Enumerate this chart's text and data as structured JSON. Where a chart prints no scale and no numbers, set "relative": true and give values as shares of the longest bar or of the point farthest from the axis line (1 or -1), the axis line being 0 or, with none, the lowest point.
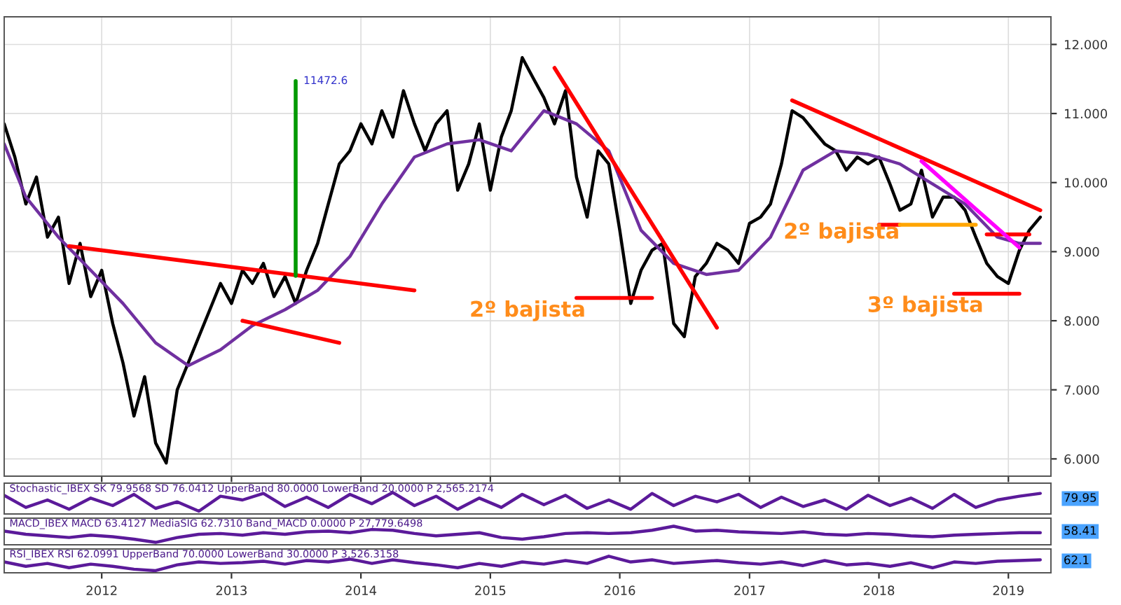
{
  "chart_data": [
    {
      "type": "line",
      "xlim": [
        "2011-04",
        "2019-05"
      ],
      "ylim": [
        5.75,
        12.4
      ],
      "xticks": [
        {
          "value": "2012",
          "label": null
        },
        {
          "value": "2013",
          "label": null
        },
        {
          "value": "2014",
          "label": null
        },
        {
          "value": "2015",
          "label": null
        },
        {
          "value": "2016",
          "label": null
        },
        {
          "value": "2017",
          "label": null
        },
        {
          "value": "2018",
          "label": null
        },
        {
          "value": "2019",
          "label": null
        }
      ],
      "yticks": [
        {
          "value": 6,
          "label": "6.000"
        },
        {
          "value": 7,
          "label": "7.000"
        },
        {
          "value": 8,
          "label": "8.000"
        },
        {
          "value": 9,
          "label": "9.000"
        },
        {
          "value": 10,
          "label": "10.000"
        },
        {
          "value": 11,
          "label": "11.000"
        },
        {
          "value": 12,
          "label": "12.000"
        }
      ],
      "tick_labels": "y",
      "grid": true,
      "legend": false,
      "series": [
        {
          "color": "#000000",
          "x": [
            "2011-04",
            "2011-05",
            "2011-06",
            "2011-07",
            "2011-08",
            "2011-09",
            "2011-10",
            "2011-11",
            "2011-12",
            "2012-01",
            "2012-02",
            "2012-03",
            "2012-04",
            "2012-05",
            "2012-06",
            "2012-07",
            "2012-08",
            "2012-09",
            "2012-10",
            "2012-11",
            "2012-12",
            "2013-01",
            "2013-02",
            "2013-03",
            "2013-04",
            "2013-05",
            "2013-06",
            "2013-07",
            "2013-08",
            "2013-09",
            "2013-10",
            "2013-11",
            "2013-12",
            "2014-01",
            "2014-02",
            "2014-03",
            "2014-04",
            "2014-05",
            "2014-06",
            "2014-07",
            "2014-08",
            "2014-09",
            "2014-10",
            "2014-11",
            "2014-12",
            "2015-01",
            "2015-02",
            "2015-03",
            "2015-04",
            "2015-05",
            "2015-06",
            "2015-07",
            "2015-08",
            "2015-09",
            "2015-10",
            "2015-11",
            "2015-12",
            "2016-01",
            "2016-02",
            "2016-03",
            "2016-04",
            "2016-05",
            "2016-06",
            "2016-07",
            "2016-08",
            "2016-09",
            "2016-10",
            "2016-11",
            "2016-12",
            "2017-01",
            "2017-02",
            "2017-03",
            "2017-04",
            "2017-05",
            "2017-06",
            "2017-07",
            "2017-08",
            "2017-09",
            "2017-10",
            "2017-11",
            "2017-12",
            "2018-01",
            "2018-02",
            "2018-03",
            "2018-04",
            "2018-05",
            "2018-06",
            "2018-07",
            "2018-08",
            "2018-09",
            "2018-10",
            "2018-11",
            "2018-12",
            "2019-01",
            "2019-02",
            "2019-03",
            "2019-04"
          ],
          "values": [
            10.85,
            10.37,
            9.69,
            10.08,
            9.21,
            9.5,
            8.54,
            9.12,
            8.35,
            8.73,
            7.96,
            7.39,
            6.62,
            7.19,
            6.23,
            5.94,
            7.0,
            7.39,
            7.77,
            8.16,
            8.54,
            8.25,
            8.73,
            8.54,
            8.83,
            8.35,
            8.64,
            8.25,
            8.73,
            9.12,
            9.69,
            10.27,
            10.46,
            10.85,
            10.56,
            11.04,
            10.66,
            11.33,
            10.85,
            10.46,
            10.85,
            11.04,
            9.89,
            10.27,
            10.85,
            9.89,
            10.66,
            11.04,
            11.81,
            11.52,
            11.23,
            10.85,
            11.33,
            10.08,
            9.5,
            10.46,
            10.27,
            9.31,
            8.25,
            8.73,
            9.02,
            9.12,
            7.96,
            7.77,
            8.64,
            8.83,
            9.12,
            9.02,
            8.83,
            9.41,
            9.5,
            9.69,
            10.27,
            11.04,
            10.94,
            10.75,
            10.56,
            10.46,
            10.18,
            10.37,
            10.27,
            10.37,
            9.98,
            9.6,
            9.69,
            10.18,
            9.5,
            9.79,
            9.79,
            9.6,
            9.21,
            8.83,
            8.64,
            8.54,
            9.02,
            9.31,
            9.5
          ]
        },
        {
          "color": "#7030a0",
          "x": [
            "2011-04",
            "2011-06",
            "2011-09",
            "2011-12",
            "2012-03",
            "2012-06",
            "2012-09",
            "2012-12",
            "2013-03",
            "2013-06",
            "2013-09",
            "2013-12",
            "2014-03",
            "2014-06",
            "2014-09",
            "2014-12",
            "2015-03",
            "2015-06",
            "2015-09",
            "2015-12",
            "2016-03",
            "2016-06",
            "2016-09",
            "2016-12",
            "2017-03",
            "2017-06",
            "2017-09",
            "2017-12",
            "2018-03",
            "2018-06",
            "2018-09",
            "2018-12",
            "2019-02",
            "2019-04"
          ],
          "values": [
            10.56,
            9.79,
            9.21,
            8.73,
            8.25,
            7.68,
            7.35,
            7.58,
            7.93,
            8.16,
            8.44,
            8.93,
            9.69,
            10.37,
            10.56,
            10.62,
            10.46,
            11.04,
            10.85,
            10.46,
            9.31,
            8.83,
            8.67,
            8.73,
            9.21,
            10.18,
            10.46,
            10.41,
            10.27,
            9.98,
            9.69,
            9.21,
            9.12,
            9.12
          ]
        },
        {
          "color": "#ff0000",
          "x": [
            "2011-10",
            "2014-06"
          ],
          "values": [
            9.08,
            8.44
          ]
        },
        {
          "color": "#ff0000",
          "x": [
            "2013-02",
            "2013-11"
          ],
          "values": [
            8.0,
            7.68
          ]
        },
        {
          "color": "#ff0000",
          "x": [
            "2015-07",
            "2016-10"
          ],
          "values": [
            11.66,
            7.9
          ]
        },
        {
          "color": "#ff0000",
          "x": [
            "2015-09",
            "2016-04"
          ],
          "values": [
            8.33,
            8.33
          ]
        },
        {
          "color": "#ff0000",
          "x": [
            "2017-05",
            "2019-04"
          ],
          "values": [
            11.19,
            9.6
          ]
        },
        {
          "color": "#ff0000",
          "x": [
            "2018-01",
            "2018-03"
          ],
          "values": [
            9.39,
            9.39
          ]
        },
        {
          "color": "#ffa500",
          "x": [
            "2018-03",
            "2018-10"
          ],
          "values": [
            9.39,
            9.39
          ]
        },
        {
          "color": "#ff0000",
          "x": [
            "2018-11",
            "2019-03"
          ],
          "values": [
            9.25,
            9.25
          ]
        },
        {
          "color": "#ff0000",
          "x": [
            "2018-08",
            "2019-02"
          ],
          "values": [
            8.39,
            8.39
          ]
        },
        {
          "color": "#ff00ff",
          "x": [
            "2018-05",
            "2019-02"
          ],
          "values": [
            10.31,
            9.06
          ]
        },
        {
          "color": "#009900",
          "x": [
            "2013-07",
            "2013-07"
          ],
          "values": [
            8.65,
            11.47
          ]
        }
      ],
      "annotations": [
        {
          "text": "11472.6",
          "x": "2013-07",
          "y": 11.47
        },
        "2º bajista",
        "2º bajista",
        "3º bajista"
      ]
    },
    {
      "type": "line",
      "relative": true,
      "xlim": [
        "2011-04",
        "2019-05"
      ],
      "tick_labels": false,
      "title": "Stochastic_IBEX SK 79.9568 SD 76.0412 UpperBand 80.0000 LowerBand 20.0000 P 2,565.2174",
      "annotations": [
        "79.95"
      ],
      "series": [
        {
          "color": "#5b1a9a",
          "x": [
            "2011-04",
            "2011-06",
            "2011-08",
            "2011-10",
            "2011-12",
            "2012-02",
            "2012-04",
            "2012-06",
            "2012-08",
            "2012-10",
            "2012-12",
            "2013-02",
            "2013-04",
            "2013-06",
            "2013-08",
            "2013-10",
            "2013-12",
            "2014-02",
            "2014-04",
            "2014-06",
            "2014-08",
            "2014-10",
            "2014-12",
            "2015-02",
            "2015-04",
            "2015-06",
            "2015-08",
            "2015-10",
            "2015-12",
            "2016-02",
            "2016-04",
            "2016-06",
            "2016-08",
            "2016-10",
            "2016-12",
            "2017-02",
            "2017-04",
            "2017-06",
            "2017-08",
            "2017-10",
            "2017-12",
            "2018-02",
            "2018-04",
            "2018-06",
            "2018-08",
            "2018-10",
            "2018-12",
            "2019-02",
            "2019-04"
          ],
          "values": [
            0.85,
            0.2,
            0.6,
            0.1,
            0.7,
            0.3,
            0.9,
            0.15,
            0.5,
            0.0,
            0.8,
            0.6,
            0.95,
            0.25,
            0.75,
            0.2,
            0.9,
            0.4,
            1.0,
            0.3,
            0.8,
            0.1,
            0.7,
            0.2,
            0.9,
            0.35,
            0.85,
            0.15,
            0.6,
            0.1,
            0.95,
            0.3,
            0.8,
            0.5,
            0.9,
            0.2,
            0.75,
            0.25,
            0.6,
            0.1,
            0.85,
            0.3,
            0.7,
            0.15,
            0.9,
            0.2,
            0.6,
            0.8,
            0.95
          ]
        }
      ]
    },
    {
      "type": "line",
      "relative": true,
      "xlim": [
        "2011-04",
        "2019-05"
      ],
      "tick_labels": false,
      "title": "MACD_IBEX MACD 63.4127 MediaSIG 62.7310 Band_MACD 0.0000 P 27,779.6498",
      "annotations": [
        "58.41"
      ],
      "series": [
        {
          "color": "#5b1a9a",
          "x": [
            "2011-04",
            "2011-06",
            "2011-08",
            "2011-10",
            "2011-12",
            "2012-02",
            "2012-04",
            "2012-06",
            "2012-08",
            "2012-10",
            "2012-12",
            "2013-02",
            "2013-04",
            "2013-06",
            "2013-08",
            "2013-10",
            "2013-12",
            "2014-02",
            "2014-04",
            "2014-06",
            "2014-08",
            "2014-10",
            "2014-12",
            "2015-02",
            "2015-04",
            "2015-06",
            "2015-08",
            "2015-10",
            "2015-12",
            "2016-02",
            "2016-04",
            "2016-06",
            "2016-08",
            "2016-10",
            "2016-12",
            "2017-02",
            "2017-04",
            "2017-06",
            "2017-08",
            "2017-10",
            "2017-12",
            "2018-02",
            "2018-04",
            "2018-06",
            "2018-08",
            "2018-10",
            "2018-12",
            "2019-02",
            "2019-04"
          ],
          "values": [
            0.7,
            0.5,
            0.4,
            0.3,
            0.45,
            0.35,
            0.2,
            0.0,
            0.3,
            0.5,
            0.55,
            0.45,
            0.6,
            0.5,
            0.65,
            0.7,
            0.6,
            0.8,
            0.75,
            0.55,
            0.4,
            0.5,
            0.6,
            0.3,
            0.2,
            0.35,
            0.55,
            0.6,
            0.55,
            0.6,
            0.75,
            1.0,
            0.7,
            0.75,
            0.65,
            0.6,
            0.55,
            0.65,
            0.5,
            0.45,
            0.55,
            0.5,
            0.4,
            0.35,
            0.45,
            0.5,
            0.55,
            0.6,
            0.6
          ]
        }
      ]
    },
    {
      "type": "line",
      "relative": true,
      "xlim": [
        "2011-04",
        "2019-05"
      ],
      "tick_labels": "x",
      "xticks": [
        {
          "value": "2012",
          "label": "2012"
        },
        {
          "value": "2013",
          "label": "2013"
        },
        {
          "value": "2014",
          "label": "2014"
        },
        {
          "value": "2015",
          "label": "2015"
        },
        {
          "value": "2016",
          "label": "2016"
        },
        {
          "value": "2017",
          "label": "2017"
        },
        {
          "value": "2018",
          "label": "2018"
        },
        {
          "value": "2019",
          "label": "2019"
        }
      ],
      "title": "RSI_IBEX RSI 62.0991 UpperBand 70.0000 LowerBand 30.0000 P 3,526.3158",
      "annotations": [
        "62.1"
      ],
      "series": [
        {
          "color": "#5b1a9a",
          "x": [
            "2011-04",
            "2011-06",
            "2011-08",
            "2011-10",
            "2011-12",
            "2012-02",
            "2012-04",
            "2012-06",
            "2012-08",
            "2012-10",
            "2012-12",
            "2013-02",
            "2013-04",
            "2013-06",
            "2013-08",
            "2013-10",
            "2013-12",
            "2014-02",
            "2014-04",
            "2014-06",
            "2014-08",
            "2014-10",
            "2014-12",
            "2015-02",
            "2015-04",
            "2015-06",
            "2015-08",
            "2015-10",
            "2015-12",
            "2016-02",
            "2016-04",
            "2016-06",
            "2016-08",
            "2016-10",
            "2016-12",
            "2017-02",
            "2017-04",
            "2017-06",
            "2017-08",
            "2017-10",
            "2017-12",
            "2018-02",
            "2018-04",
            "2018-06",
            "2018-08",
            "2018-10",
            "2018-12",
            "2019-02",
            "2019-04"
          ],
          "values": [
            0.6,
            0.3,
            0.5,
            0.2,
            0.45,
            0.3,
            0.1,
            0.0,
            0.4,
            0.6,
            0.5,
            0.55,
            0.65,
            0.45,
            0.7,
            0.6,
            0.8,
            0.5,
            0.75,
            0.55,
            0.4,
            0.2,
            0.5,
            0.3,
            0.6,
            0.45,
            0.7,
            0.5,
            1.0,
            0.6,
            0.75,
            0.5,
            0.6,
            0.7,
            0.55,
            0.45,
            0.6,
            0.35,
            0.7,
            0.4,
            0.5,
            0.3,
            0.55,
            0.2,
            0.6,
            0.5,
            0.65,
            0.7,
            0.75
          ]
        }
      ]
    }
  ]
}
